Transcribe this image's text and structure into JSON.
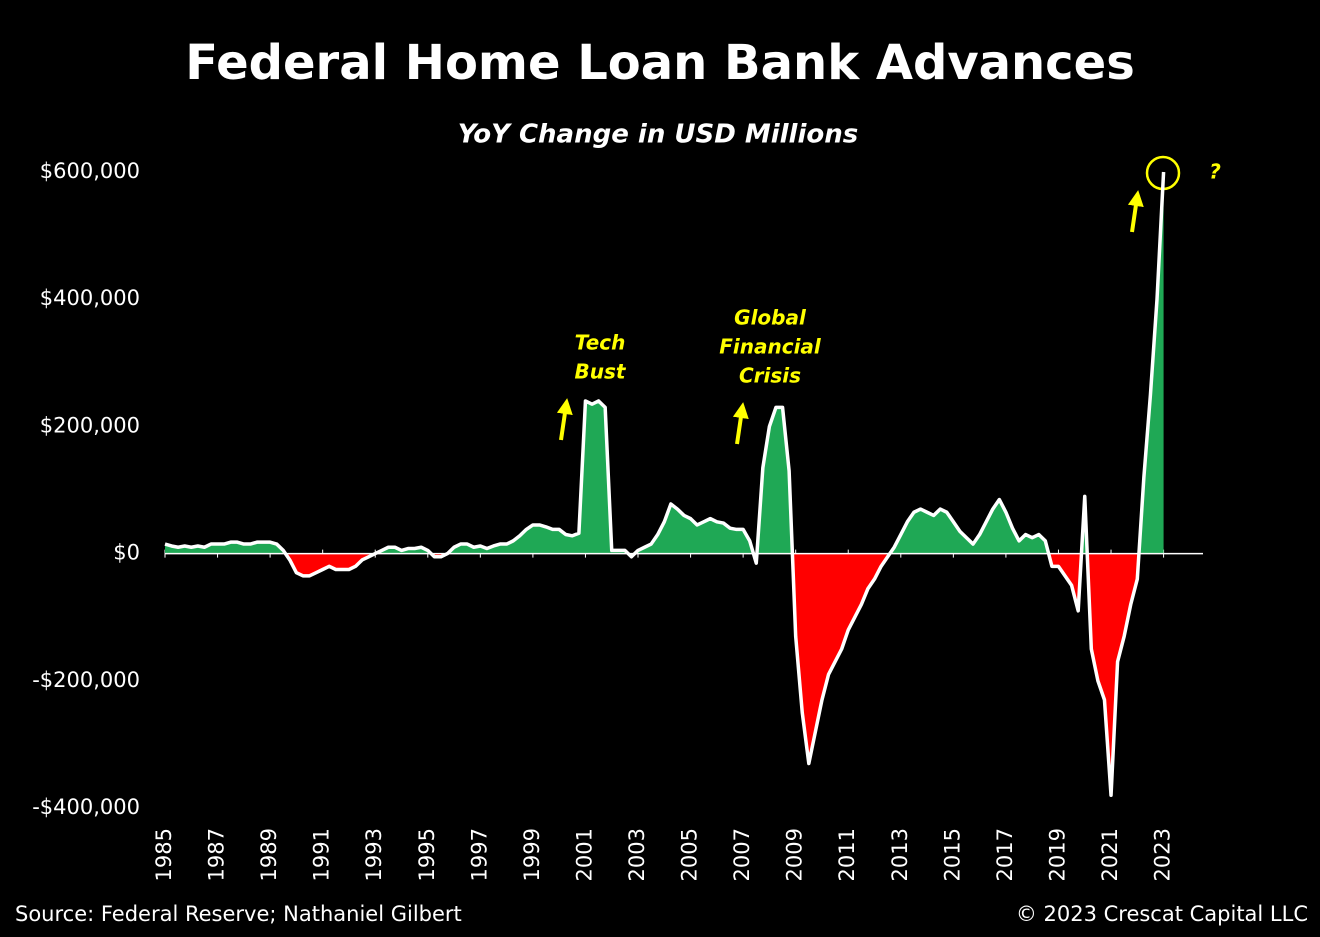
{
  "chart_data": {
    "type": "area",
    "title": "Federal Home Loan Bank Advances",
    "subtitle": "YoY Change in USD Millions",
    "source": "Source: Federal Reserve; Nathaniel Gilbert",
    "copyright": "© 2023 Crescat Capital LLC",
    "annotations": [
      {
        "lines": [
          "Tech",
          "Bust"
        ]
      },
      {
        "lines": [
          "Global",
          "Financial",
          "Crisis"
        ]
      },
      {
        "text": "?"
      }
    ],
    "positive_color": "#1fa855",
    "negative_color": "#ff0000",
    "line_color": "#ffffff",
    "xlim": [
      1985,
      2024.5
    ],
    "xticks": [
      1985,
      1987,
      1989,
      1991,
      1993,
      1995,
      1997,
      1999,
      2001,
      2003,
      2005,
      2007,
      2009,
      2011,
      2013,
      2015,
      2017,
      2019,
      2021,
      2023
    ],
    "ylim": [
      -400000,
      600000
    ],
    "yticks": [
      {
        "value": -400000,
        "label": "-$400,000"
      },
      {
        "value": -200000,
        "label": "-$200,000"
      },
      {
        "value": 0,
        "label": "$0"
      },
      {
        "value": 200000,
        "label": "$200,000"
      },
      {
        "value": 400000,
        "label": "$400,000"
      },
      {
        "value": 600000,
        "label": "$600,000"
      }
    ],
    "x": [
      1985,
      1985.25,
      1985.5,
      1985.75,
      1986,
      1986.25,
      1986.5,
      1986.75,
      1987,
      1987.25,
      1987.5,
      1987.75,
      1988,
      1988.25,
      1988.5,
      1988.75,
      1989,
      1989.25,
      1989.5,
      1989.75,
      1990,
      1990.25,
      1990.5,
      1990.75,
      1991,
      1991.25,
      1991.5,
      1991.75,
      1992,
      1992.25,
      1992.5,
      1992.75,
      1993,
      1993.25,
      1993.5,
      1993.75,
      1994,
      1994.25,
      1994.5,
      1994.75,
      1995,
      1995.25,
      1995.5,
      1995.75,
      1996,
      1996.25,
      1996.5,
      1996.75,
      1997,
      1997.25,
      1997.5,
      1997.75,
      1998,
      1998.25,
      1998.5,
      1998.75,
      1999,
      1999.25,
      1999.5,
      1999.75,
      2000,
      2000.25,
      2000.5,
      2000.75,
      2001,
      2001.25,
      2001.5,
      2001.75,
      2002,
      2002.25,
      2002.5,
      2002.75,
      2003,
      2003.25,
      2003.5,
      2003.75,
      2004,
      2004.25,
      2004.5,
      2004.75,
      2005,
      2005.25,
      2005.5,
      2005.75,
      2006,
      2006.25,
      2006.5,
      2006.75,
      2007,
      2007.25,
      2007.5,
      2007.75,
      2008,
      2008.25,
      2008.5,
      2008.75,
      2009,
      2009.25,
      2009.5,
      2009.75,
      2010,
      2010.25,
      2010.5,
      2010.75,
      2011,
      2011.25,
      2011.5,
      2011.75,
      2012,
      2012.25,
      2012.5,
      2012.75,
      2013,
      2013.25,
      2013.5,
      2013.75,
      2014,
      2014.25,
      2014.5,
      2014.75,
      2015,
      2015.25,
      2015.5,
      2015.75,
      2016,
      2016.25,
      2016.5,
      2016.75,
      2017,
      2017.25,
      2017.5,
      2017.75,
      2018,
      2018.25,
      2018.5,
      2018.75,
      2019,
      2019.25,
      2019.5,
      2019.75,
      2020,
      2020.25,
      2020.5,
      2020.75,
      2021,
      2021.25,
      2021.5,
      2021.75,
      2022,
      2022.25,
      2022.5,
      2022.75,
      2023
    ],
    "values": [
      15000,
      12000,
      10000,
      12000,
      10000,
      12000,
      10000,
      15000,
      15000,
      15000,
      18000,
      18000,
      15000,
      15000,
      18000,
      18000,
      18000,
      15000,
      5000,
      -10000,
      -30000,
      -35000,
      -35000,
      -30000,
      -25000,
      -20000,
      -25000,
      -25000,
      -25000,
      -20000,
      -10000,
      -5000,
      0,
      5000,
      10000,
      10000,
      5000,
      8000,
      8000,
      10000,
      5000,
      -5000,
      -5000,
      0,
      10000,
      15000,
      15000,
      10000,
      12000,
      8000,
      12000,
      15000,
      15000,
      20000,
      28000,
      38000,
      45000,
      45000,
      42000,
      38000,
      38000,
      30000,
      28000,
      32000,
      240000,
      235000,
      240000,
      230000,
      5000,
      5000,
      5000,
      -5000,
      5000,
      10000,
      15000,
      30000,
      50000,
      78000,
      70000,
      60000,
      55000,
      45000,
      50000,
      55000,
      50000,
      48000,
      40000,
      38000,
      38000,
      20000,
      -15000,
      135000,
      200000,
      230000,
      230000,
      130000,
      -130000,
      -250000,
      -330000,
      -280000,
      -230000,
      -190000,
      -170000,
      -150000,
      -120000,
      -100000,
      -80000,
      -55000,
      -40000,
      -20000,
      -5000,
      10000,
      30000,
      50000,
      65000,
      70000,
      65000,
      60000,
      70000,
      65000,
      50000,
      35000,
      25000,
      15000,
      30000,
      50000,
      70000,
      85000,
      65000,
      40000,
      20000,
      30000,
      25000,
      30000,
      20000,
      -20000,
      -20000,
      -35000,
      -50000,
      -90000,
      90000,
      -150000,
      -200000,
      -230000,
      -380000,
      -170000,
      -130000,
      -80000,
      -40000,
      120000,
      250000,
      400000,
      600000
    ]
  }
}
